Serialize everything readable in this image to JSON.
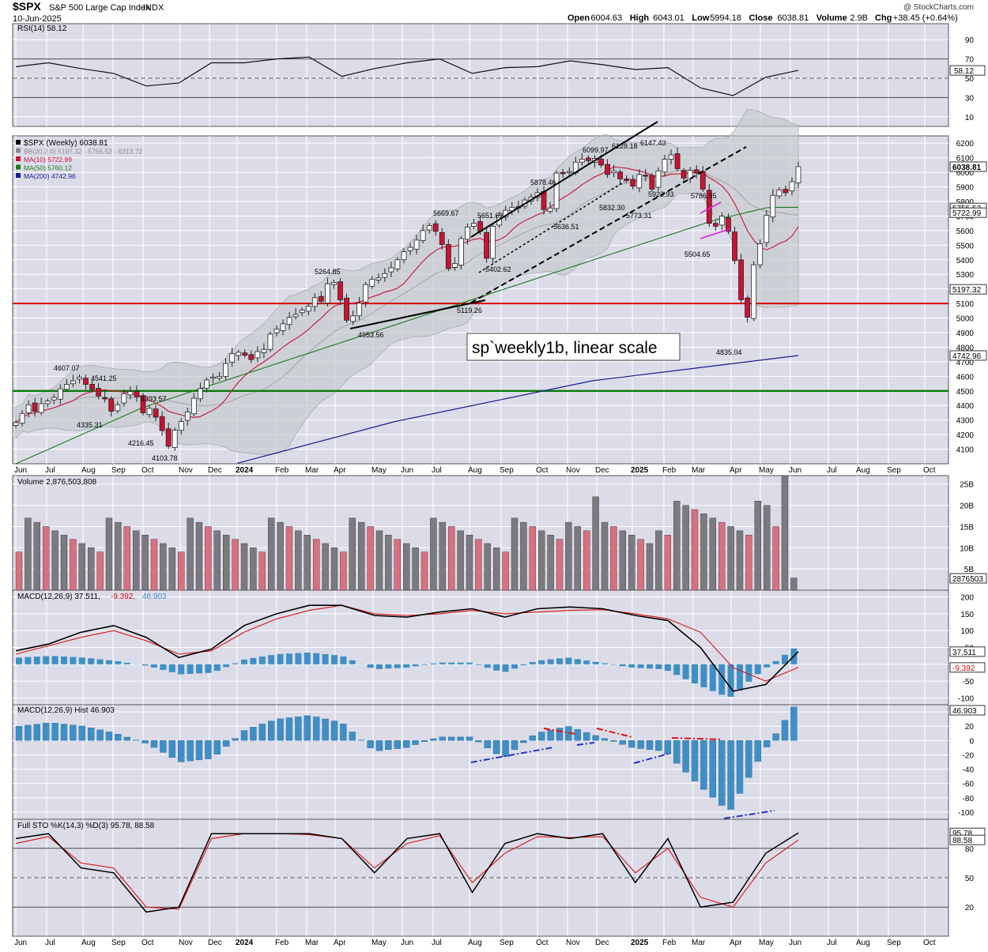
{
  "header": {
    "symbol": "$SPX",
    "name": "S&P 500 Large Cap Index",
    "exchange": "INDX",
    "watermark": "@ StockCharts.com",
    "date": "10-Jun-2025",
    "ohlc": {
      "open_label": "Open",
      "open": "6004.63",
      "high_label": "High",
      "high": "6043.01",
      "low_label": "Low",
      "low": "5994.18",
      "close_label": "Close",
      "close": "6038.81",
      "volume_label": "Volume",
      "volume": "2.9B",
      "chg_label": "Chg",
      "chg": "+38.45 (+0.64%)"
    }
  },
  "annotation_text": "sp`weekly1b, linear scale",
  "colors": {
    "panel_bg": "#dcdce9",
    "grid": "#ffffff",
    "up": "#ffffff",
    "down": "#cc1133",
    "ma10": "#cc1133",
    "ma50": "#1a7a1a",
    "ma200": "#1a1a99",
    "bb_fill": "#c3c9cc",
    "hline_red": "#dd0000",
    "hline_green": "#0a7a0a",
    "macd_hist": "#3f8fc6",
    "vol_gray": "#7a7a80",
    "vol_red": "#d9707f",
    "magenta": "#dd22dd"
  },
  "chart_data": [
    {
      "type": "line",
      "title": "RSI(14) 58.12",
      "indicator": "RSI",
      "value": 58.12,
      "y_ticks": [
        90,
        70,
        50,
        30,
        10
      ],
      "overbought": 70,
      "oversold": 30,
      "x": [
        "2023-06",
        "2023-07",
        "2023-08",
        "2023-09",
        "2023-10",
        "2023-11",
        "2023-12",
        "2024-01",
        "2024-02",
        "2024-03",
        "2024-04",
        "2024-05",
        "2024-06",
        "2024-07",
        "2024-08",
        "2024-09",
        "2024-10",
        "2024-11",
        "2024-12",
        "2025-01",
        "2025-02",
        "2025-03",
        "2025-04",
        "2025-05",
        "2025-06"
      ],
      "values": [
        62,
        66,
        60,
        55,
        42,
        45,
        66,
        66,
        70,
        72,
        52,
        60,
        66,
        70,
        55,
        61,
        62,
        68,
        64,
        59,
        61,
        40,
        32,
        51,
        58.12
      ]
    },
    {
      "type": "candlestick",
      "title": "$SPX (Weekly) 6038.81",
      "price_scale": "linear",
      "y_ticks": [
        6200,
        6100,
        6000,
        5900,
        5800,
        5700,
        5600,
        5500,
        5400,
        5300,
        5200,
        5100,
        5000,
        4900,
        4800,
        4700,
        4600,
        4500,
        4400,
        4300,
        4200,
        4100
      ],
      "x_labels": [
        "Jun",
        "Jul",
        "Aug",
        "Sep",
        "Oct",
        "Nov",
        "Dec",
        "2024",
        "Feb",
        "Mar",
        "Apr",
        "May",
        "Jun",
        "Jul",
        "Aug",
        "Sep",
        "Oct",
        "Nov",
        "Dec",
        "2025",
        "Feb",
        "Mar",
        "Apr",
        "May",
        "Jun",
        "Jul",
        "Aug",
        "Sep",
        "Oct"
      ],
      "legend": [
        {
          "label": "$SPX (Weekly) 6038.81",
          "color": "#000000"
        },
        {
          "label": "BB(20,2.0) 5197.32 - 5755.52 - 6313.72",
          "color": "#888888"
        },
        {
          "label": "MA(10) 5722.99",
          "color": "#cc1133"
        },
        {
          "label": "MA(50) 5760.12",
          "color": "#1a7a1a"
        },
        {
          "label": "MA(200) 4742.96",
          "color": "#1a1a99"
        }
      ],
      "right_labels": [
        {
          "value": 6038.81,
          "text": "6038.81"
        },
        {
          "value": 5755.52,
          "text": "5755.52"
        },
        {
          "value": 5722.99,
          "text": "5722.99"
        },
        {
          "value": 5197.32,
          "text": "5197.32"
        },
        {
          "value": 4742.96,
          "text": "4742.96"
        }
      ],
      "horizontal_lines": [
        {
          "value": 5100,
          "color": "red"
        },
        {
          "value": 4500,
          "color": "green"
        }
      ],
      "price_labels": [
        "4607.07",
        "4541.25",
        "4335.31",
        "4393.57",
        "4216.45",
        "4103.78",
        "5264.85",
        "4953.56",
        "5669.67",
        "5651.62",
        "5402.62",
        "5119.26",
        "5878.46",
        "5636.51",
        "6099.97",
        "5832.30",
        "6128.18",
        "6147.43",
        "5923.93",
        "5773.31",
        "5786.95",
        "5504.65",
        "4835.04"
      ],
      "closes_approx": [
        4283,
        4345,
        4405,
        4360,
        4412,
        4430,
        4455,
        4515,
        4545,
        4569,
        4595,
        4545,
        4510,
        4465,
        4450,
        4360,
        4405,
        4480,
        4496,
        4460,
        4350,
        4380,
        4320,
        4228,
        4120,
        4230,
        4290,
        4355,
        4450,
        4515,
        4575,
        4595,
        4600,
        4688,
        4755,
        4765,
        4745,
        4715,
        4770,
        4785,
        4890,
        4925,
        4960,
        5005,
        5025,
        5055,
        5080,
        5140,
        5115,
        5235,
        5245,
        5125,
        4985,
        5015,
        5102,
        5230,
        5265,
        5275,
        5305,
        5345,
        5400,
        5455,
        5485,
        5535,
        5600,
        5635,
        5595,
        5505,
        5340,
        5375,
        5545,
        5625,
        5650,
        5595,
        5410,
        5630,
        5705,
        5740,
        5760,
        5755,
        5810,
        5830,
        5860,
        5745,
        5755,
        5995,
        5990,
        6005,
        6070,
        6090,
        6080,
        6095,
        6050,
        5985,
        6010,
        5955,
        5944,
        5905,
        5985,
        5975,
        5885,
        6010,
        6090,
        6120,
        6025,
        5960,
        6014,
        5995,
        5885,
        5650,
        5630,
        5700,
        5595,
        5395,
        5125,
        5005,
        5365,
        5510,
        5705,
        5842,
        5880,
        5860,
        5936,
        6038.81
      ]
    },
    {
      "type": "bar",
      "title": "Volume 2,876,503,808",
      "y_ticks": [
        "25B",
        "20B",
        "15B",
        "10B",
        "5B"
      ],
      "last_label": "2876503",
      "bar_count": 87,
      "bar_colors": [
        "gray",
        "red"
      ],
      "last_value": 2876503808
    },
    {
      "type": "line",
      "title": "MACD(12,26,9) 37.511, -9.392, 46.903",
      "macd": 37.511,
      "signal": -9.392,
      "histogram": 46.903,
      "y_ticks": [
        200,
        150,
        100,
        50,
        0,
        -50,
        -100
      ],
      "macd_series": [
        40,
        60,
        95,
        115,
        80,
        20,
        45,
        115,
        150,
        175,
        175,
        145,
        140,
        155,
        165,
        140,
        165,
        170,
        165,
        145,
        130,
        50,
        -80,
        -60,
        37.511
      ],
      "signal_series": [
        30,
        55,
        80,
        100,
        70,
        30,
        40,
        95,
        135,
        160,
        175,
        150,
        145,
        150,
        160,
        150,
        155,
        160,
        162,
        150,
        135,
        95,
        -10,
        -50,
        -9.392
      ]
    },
    {
      "type": "bar",
      "title": "MACD(12,26,9) Hist 46.903",
      "value": 46.903,
      "y_ticks": [
        40,
        20,
        0,
        -20,
        -40,
        -60,
        -80,
        -100
      ],
      "hist_series": [
        20,
        25,
        20,
        10,
        -5,
        -30,
        -25,
        15,
        30,
        35,
        25,
        -15,
        -10,
        5,
        5,
        -25,
        10,
        20,
        5,
        -10,
        -15,
        -60,
        -100,
        -20,
        46.903
      ]
    },
    {
      "type": "line",
      "title": "Full STO %K(14,3) %D(3) 95.78, 88.58",
      "k": 95.78,
      "d": 88.58,
      "y_ticks": [
        80,
        50,
        20
      ],
      "k_series": [
        90,
        95,
        60,
        55,
        15,
        20,
        95,
        95,
        95,
        95,
        90,
        55,
        90,
        95,
        35,
        85,
        95,
        90,
        95,
        45,
        90,
        20,
        25,
        75,
        95.78
      ],
      "d_series": [
        85,
        92,
        65,
        60,
        20,
        18,
        90,
        95,
        95,
        94,
        90,
        60,
        85,
        93,
        45,
        75,
        92,
        91,
        92,
        55,
        80,
        30,
        20,
        65,
        88.58
      ]
    }
  ]
}
